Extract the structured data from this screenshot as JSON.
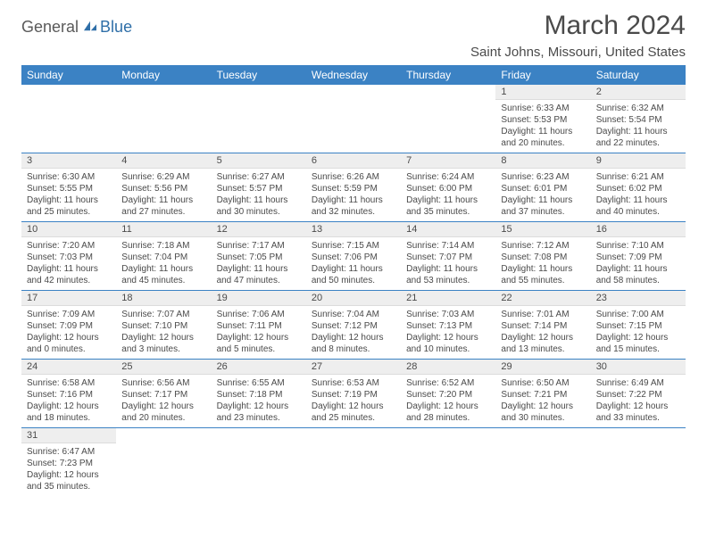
{
  "logo": {
    "part1": "General",
    "part2": "Blue"
  },
  "title": "March 2024",
  "location": "Saint Johns, Missouri, United States",
  "headers": [
    "Sunday",
    "Monday",
    "Tuesday",
    "Wednesday",
    "Thursday",
    "Friday",
    "Saturday"
  ],
  "colors": {
    "header_bg": "#3b82c4",
    "header_text": "#ffffff",
    "daynum_bg": "#eeeeee",
    "border": "#3b82c4",
    "text": "#4a4a4a",
    "logo_gray": "#5a5a5a",
    "logo_blue": "#2f6fa8"
  },
  "weeks": [
    [
      null,
      null,
      null,
      null,
      null,
      {
        "n": "1",
        "sunrise": "6:33 AM",
        "sunset": "5:53 PM",
        "day_h": "11",
        "day_m": "20"
      },
      {
        "n": "2",
        "sunrise": "6:32 AM",
        "sunset": "5:54 PM",
        "day_h": "11",
        "day_m": "22"
      }
    ],
    [
      {
        "n": "3",
        "sunrise": "6:30 AM",
        "sunset": "5:55 PM",
        "day_h": "11",
        "day_m": "25"
      },
      {
        "n": "4",
        "sunrise": "6:29 AM",
        "sunset": "5:56 PM",
        "day_h": "11",
        "day_m": "27"
      },
      {
        "n": "5",
        "sunrise": "6:27 AM",
        "sunset": "5:57 PM",
        "day_h": "11",
        "day_m": "30"
      },
      {
        "n": "6",
        "sunrise": "6:26 AM",
        "sunset": "5:59 PM",
        "day_h": "11",
        "day_m": "32"
      },
      {
        "n": "7",
        "sunrise": "6:24 AM",
        "sunset": "6:00 PM",
        "day_h": "11",
        "day_m": "35"
      },
      {
        "n": "8",
        "sunrise": "6:23 AM",
        "sunset": "6:01 PM",
        "day_h": "11",
        "day_m": "37"
      },
      {
        "n": "9",
        "sunrise": "6:21 AM",
        "sunset": "6:02 PM",
        "day_h": "11",
        "day_m": "40"
      }
    ],
    [
      {
        "n": "10",
        "sunrise": "7:20 AM",
        "sunset": "7:03 PM",
        "day_h": "11",
        "day_m": "42"
      },
      {
        "n": "11",
        "sunrise": "7:18 AM",
        "sunset": "7:04 PM",
        "day_h": "11",
        "day_m": "45"
      },
      {
        "n": "12",
        "sunrise": "7:17 AM",
        "sunset": "7:05 PM",
        "day_h": "11",
        "day_m": "47"
      },
      {
        "n": "13",
        "sunrise": "7:15 AM",
        "sunset": "7:06 PM",
        "day_h": "11",
        "day_m": "50"
      },
      {
        "n": "14",
        "sunrise": "7:14 AM",
        "sunset": "7:07 PM",
        "day_h": "11",
        "day_m": "53"
      },
      {
        "n": "15",
        "sunrise": "7:12 AM",
        "sunset": "7:08 PM",
        "day_h": "11",
        "day_m": "55"
      },
      {
        "n": "16",
        "sunrise": "7:10 AM",
        "sunset": "7:09 PM",
        "day_h": "11",
        "day_m": "58"
      }
    ],
    [
      {
        "n": "17",
        "sunrise": "7:09 AM",
        "sunset": "7:09 PM",
        "day_h": "12",
        "day_m": "0"
      },
      {
        "n": "18",
        "sunrise": "7:07 AM",
        "sunset": "7:10 PM",
        "day_h": "12",
        "day_m": "3"
      },
      {
        "n": "19",
        "sunrise": "7:06 AM",
        "sunset": "7:11 PM",
        "day_h": "12",
        "day_m": "5"
      },
      {
        "n": "20",
        "sunrise": "7:04 AM",
        "sunset": "7:12 PM",
        "day_h": "12",
        "day_m": "8"
      },
      {
        "n": "21",
        "sunrise": "7:03 AM",
        "sunset": "7:13 PM",
        "day_h": "12",
        "day_m": "10"
      },
      {
        "n": "22",
        "sunrise": "7:01 AM",
        "sunset": "7:14 PM",
        "day_h": "12",
        "day_m": "13"
      },
      {
        "n": "23",
        "sunrise": "7:00 AM",
        "sunset": "7:15 PM",
        "day_h": "12",
        "day_m": "15"
      }
    ],
    [
      {
        "n": "24",
        "sunrise": "6:58 AM",
        "sunset": "7:16 PM",
        "day_h": "12",
        "day_m": "18"
      },
      {
        "n": "25",
        "sunrise": "6:56 AM",
        "sunset": "7:17 PM",
        "day_h": "12",
        "day_m": "20"
      },
      {
        "n": "26",
        "sunrise": "6:55 AM",
        "sunset": "7:18 PM",
        "day_h": "12",
        "day_m": "23"
      },
      {
        "n": "27",
        "sunrise": "6:53 AM",
        "sunset": "7:19 PM",
        "day_h": "12",
        "day_m": "25"
      },
      {
        "n": "28",
        "sunrise": "6:52 AM",
        "sunset": "7:20 PM",
        "day_h": "12",
        "day_m": "28"
      },
      {
        "n": "29",
        "sunrise": "6:50 AM",
        "sunset": "7:21 PM",
        "day_h": "12",
        "day_m": "30"
      },
      {
        "n": "30",
        "sunrise": "6:49 AM",
        "sunset": "7:22 PM",
        "day_h": "12",
        "day_m": "33"
      }
    ],
    [
      {
        "n": "31",
        "sunrise": "6:47 AM",
        "sunset": "7:23 PM",
        "day_h": "12",
        "day_m": "35"
      },
      null,
      null,
      null,
      null,
      null,
      null
    ]
  ]
}
